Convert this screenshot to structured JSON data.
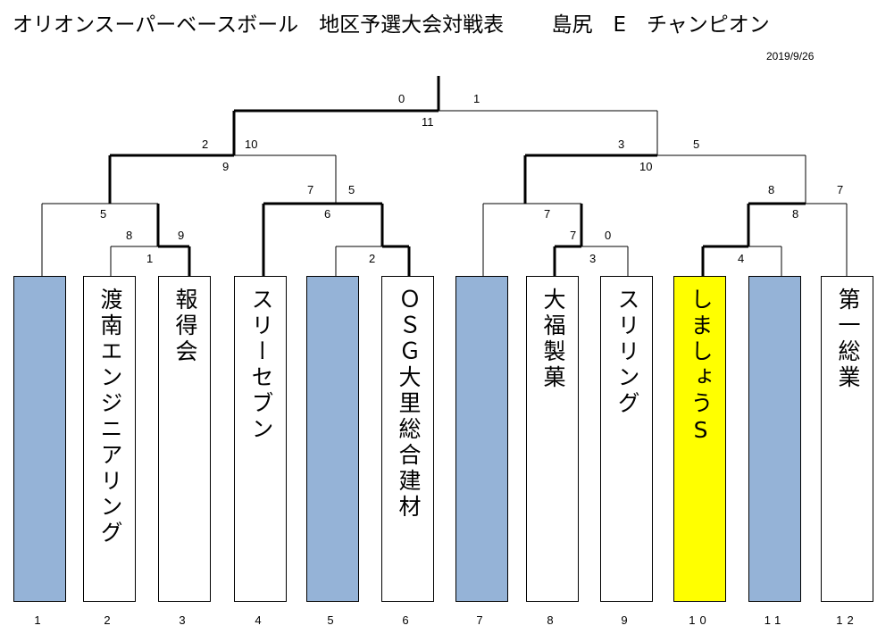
{
  "title": "オリオンスーパーベースボール　地区予選大会対戦表　　 島尻　E　チャンピオン",
  "date": "2019/9/26",
  "teams": [
    {
      "pos": "1",
      "name": "",
      "state": "empty"
    },
    {
      "pos": "2",
      "name": "渡南エンジニアリング",
      "state": "normal"
    },
    {
      "pos": "3",
      "name": "報得会",
      "state": "normal"
    },
    {
      "pos": "4",
      "name": "スリーセブン",
      "state": "normal"
    },
    {
      "pos": "5",
      "name": "",
      "state": "empty"
    },
    {
      "pos": "6",
      "name": "ＯＳＧ大里総合建材",
      "state": "normal"
    },
    {
      "pos": "7",
      "name": "",
      "state": "empty"
    },
    {
      "pos": "8",
      "name": "大福製菓",
      "state": "normal"
    },
    {
      "pos": "9",
      "name": "スリリング",
      "state": "normal"
    },
    {
      "pos": "10",
      "name": "しましょうS",
      "state": "champion"
    },
    {
      "pos": "11",
      "name": "",
      "state": "empty"
    },
    {
      "pos": "12",
      "name": "第一総業",
      "state": "normal"
    }
  ],
  "scores": {
    "final_left": "0",
    "final_right": "1",
    "final_game": "11",
    "semi_left_a": "2",
    "semi_left_b": "10",
    "semi_left_game": "9",
    "semi_right_a": "3",
    "semi_right_b": "5",
    "semi_right_game": "10",
    "q1_a": "5",
    "q1_game": "",
    "q2_a": "7",
    "q2_b": "5",
    "q2_game": "6",
    "q3_a": "7",
    "q3_b": "7",
    "q4_a": "8",
    "q4_b": "7",
    "q4_game": "8",
    "r1_a": "8",
    "r1_b": "9",
    "r1_game": "1",
    "r2_game": "2",
    "r3_a": "7",
    "r3_b": "0",
    "r3_game": "3",
    "r4_game": "4",
    "q1_b_label": "5",
    "q3_game": "7"
  }
}
